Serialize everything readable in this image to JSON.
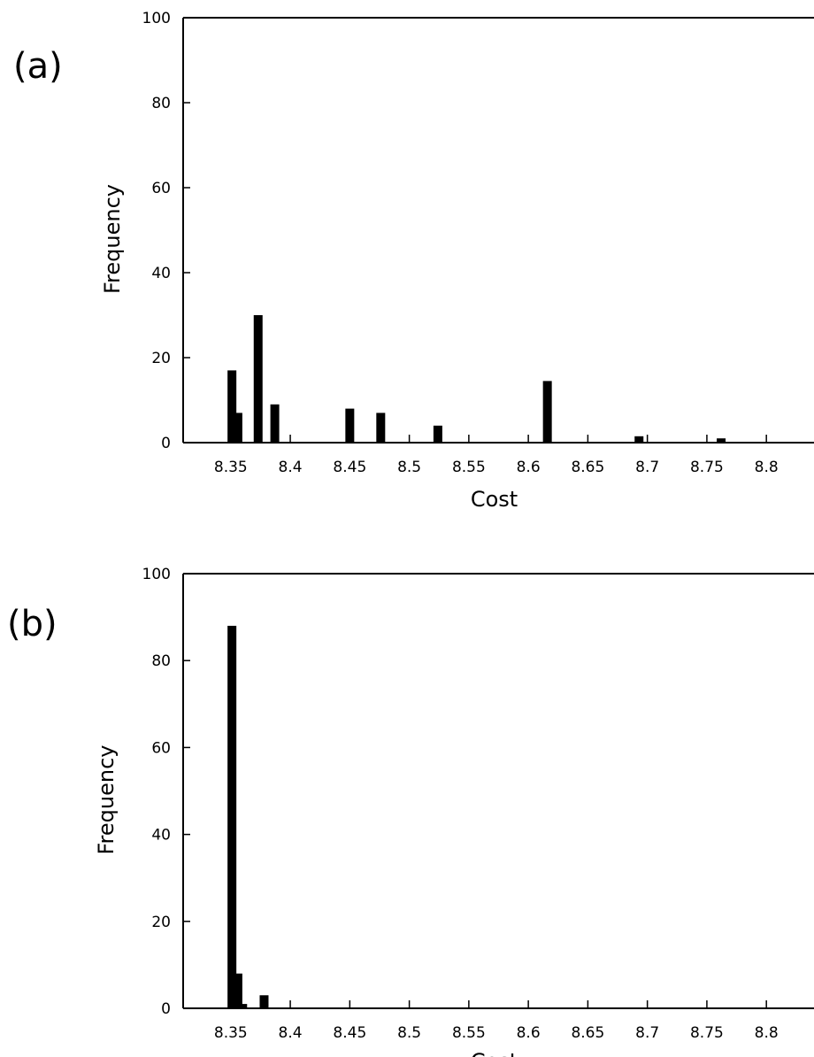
{
  "chart_data": [
    {
      "type": "bar",
      "panel_label": "(a)",
      "xlabel": "Cost",
      "ylabel": "Frequency",
      "ylim": [
        0,
        100
      ],
      "xlim": [
        8.31,
        8.84
      ],
      "yticks": [
        0,
        20,
        40,
        60,
        80,
        100
      ],
      "xticks": [
        "8.35",
        "8.4",
        "8.45",
        "8.5",
        "8.55",
        "8.6",
        "8.65",
        "8.7",
        "8.75",
        "8.8"
      ],
      "bars": [
        {
          "x": 8.351,
          "value": 17
        },
        {
          "x": 8.356,
          "value": 7
        },
        {
          "x": 8.373,
          "value": 30
        },
        {
          "x": 8.387,
          "value": 9
        },
        {
          "x": 8.45,
          "value": 8
        },
        {
          "x": 8.476,
          "value": 7
        },
        {
          "x": 8.524,
          "value": 4
        },
        {
          "x": 8.616,
          "value": 14.5
        },
        {
          "x": 8.693,
          "value": 1.5
        },
        {
          "x": 8.762,
          "value": 1
        }
      ],
      "grid": false,
      "legend": "none"
    },
    {
      "type": "bar",
      "panel_label": "(b)",
      "xlabel": "Cost",
      "ylabel": "Frequency",
      "ylim": [
        0,
        100
      ],
      "xlim": [
        8.31,
        8.84
      ],
      "yticks": [
        0,
        20,
        40,
        60,
        80,
        100
      ],
      "xticks": [
        "8.35",
        "8.4",
        "8.45",
        "8.5",
        "8.55",
        "8.6",
        "8.65",
        "8.7",
        "8.75",
        "8.8"
      ],
      "bars": [
        {
          "x": 8.351,
          "value": 88
        },
        {
          "x": 8.356,
          "value": 8
        },
        {
          "x": 8.36,
          "value": 1
        },
        {
          "x": 8.378,
          "value": 3
        }
      ],
      "grid": false,
      "legend": "none"
    }
  ]
}
